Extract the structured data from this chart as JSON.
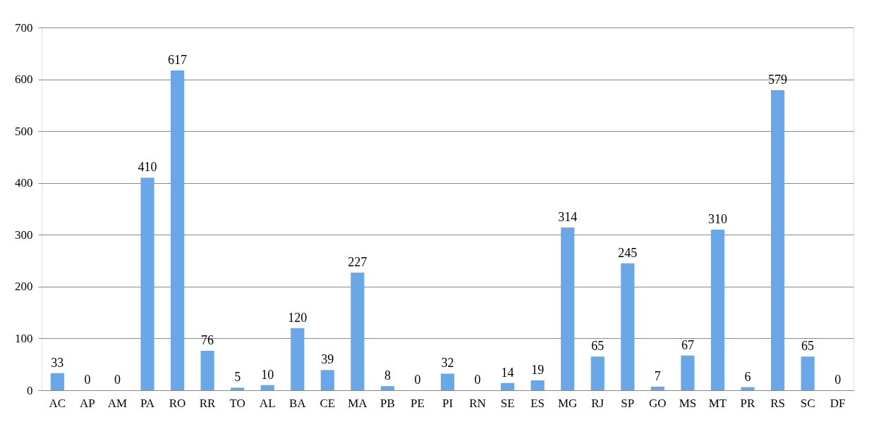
{
  "chart_data": {
    "type": "bar",
    "categories": [
      "AC",
      "AP",
      "AM",
      "PA",
      "RO",
      "RR",
      "TO",
      "AL",
      "BA",
      "CE",
      "MA",
      "PB",
      "PE",
      "PI",
      "RN",
      "SE",
      "ES",
      "MG",
      "RJ",
      "SP",
      "GO",
      "MS",
      "MT",
      "PR",
      "RS",
      "SC",
      "DF"
    ],
    "values": [
      33,
      0,
      0,
      410,
      617,
      76,
      5,
      10,
      120,
      39,
      227,
      8,
      0,
      32,
      0,
      14,
      19,
      314,
      65,
      245,
      7,
      67,
      310,
      6,
      579,
      65,
      0
    ],
    "color": "#6aa7e8",
    "ylim": [
      0,
      700
    ],
    "yticks": [
      0,
      100,
      200,
      300,
      400,
      500,
      600,
      700
    ],
    "grid": "y",
    "data_labels": true
  }
}
